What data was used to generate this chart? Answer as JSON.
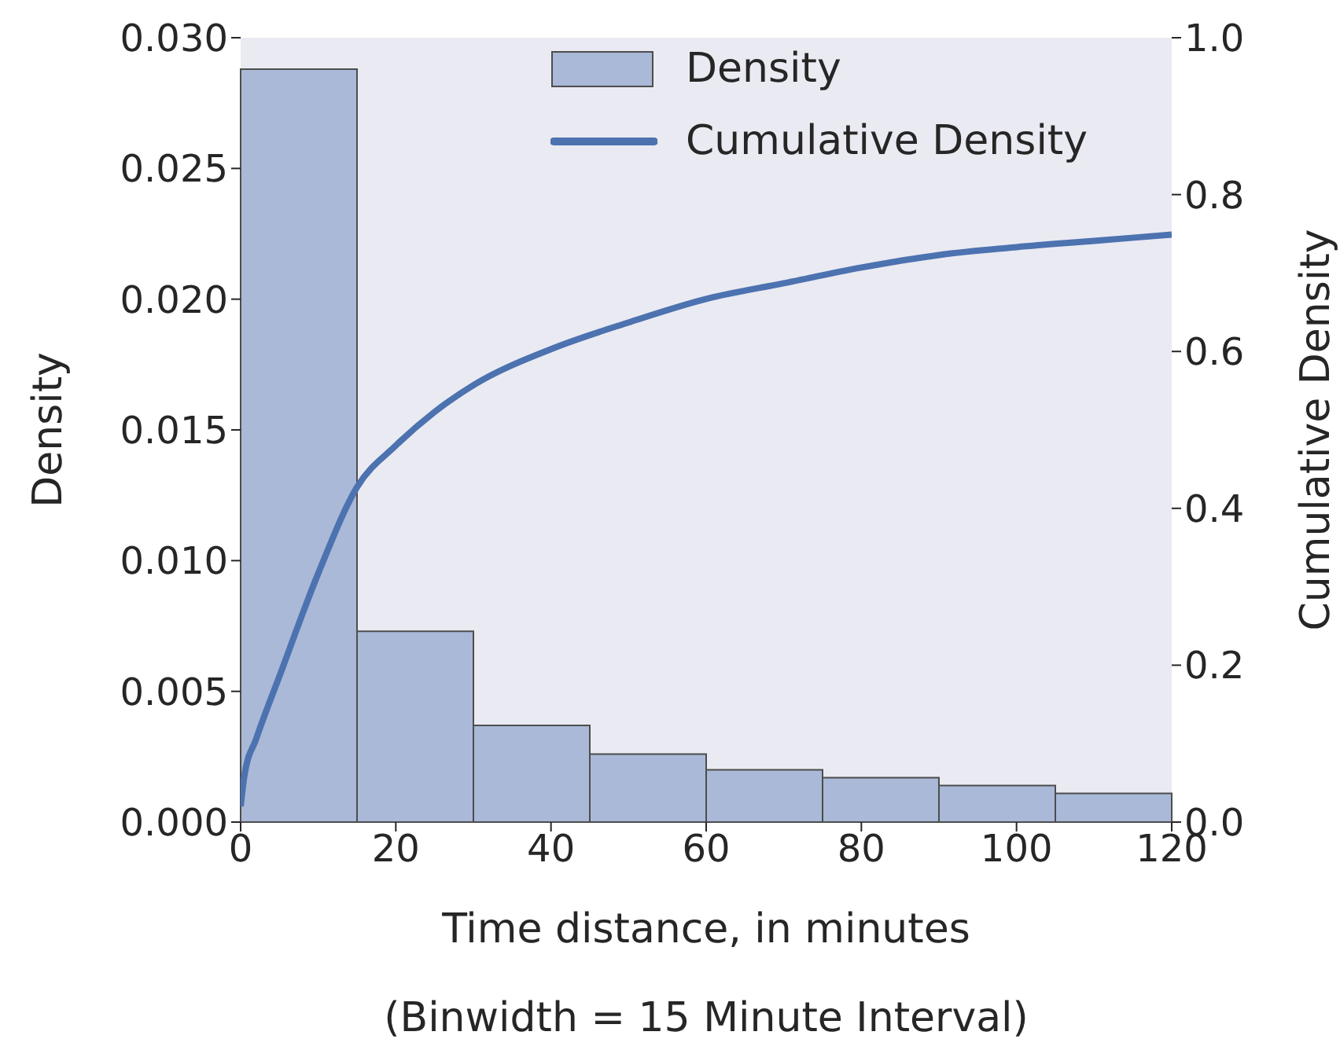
{
  "chart_data": {
    "type": "histogram",
    "xlabel": "Time distance, in minutes",
    "ylabel": "Density",
    "y2label": "Cumulative Density",
    "annotations": [
      "(Binwidth = 15 Minute Interval)"
    ],
    "series": [
      {
        "name": "Density",
        "type": "histogram",
        "color": "#a9b9d7",
        "bins": [
          0,
          15,
          30,
          45,
          60,
          75,
          90,
          105,
          120
        ],
        "values": [
          0.0288,
          0.0073,
          0.0037,
          0.0026,
          0.002,
          0.0017,
          0.0014,
          0.0011
        ]
      },
      {
        "name": "Cumulative Density",
        "type": "line",
        "axis": "y2",
        "color": "#4c72b0",
        "x": [
          0,
          0.5,
          2,
          5,
          10,
          15,
          20,
          25,
          30,
          40,
          50,
          60,
          70,
          80,
          90,
          100,
          110,
          120
        ],
        "values": [
          0.02,
          0.06,
          0.106,
          0.186,
          0.317,
          0.427,
          0.48,
          0.523,
          0.557,
          0.603,
          0.637,
          0.667,
          0.687,
          0.707,
          0.723,
          0.733,
          0.741,
          0.749
        ]
      }
    ],
    "xlim": [
      0,
      120
    ],
    "xticks": [
      0,
      20,
      40,
      60,
      80,
      100,
      120
    ],
    "ylim": [
      0,
      0.03
    ],
    "yticks": [
      {
        "value": 0,
        "label": "0.000"
      },
      {
        "value": 0.005,
        "label": "0.005"
      },
      {
        "value": 0.01,
        "label": "0.010"
      },
      {
        "value": 0.015,
        "label": "0.015"
      },
      {
        "value": 0.02,
        "label": "0.020"
      },
      {
        "value": 0.025,
        "label": "0.025"
      },
      {
        "value": 0.03,
        "label": "0.030"
      }
    ],
    "y2lim": [
      0,
      1
    ],
    "y2ticks": [
      {
        "value": 0,
        "label": "0.0"
      },
      {
        "value": 0.2,
        "label": "0.2"
      },
      {
        "value": 0.4,
        "label": "0.4"
      },
      {
        "value": 0.6,
        "label": "0.6"
      },
      {
        "value": 0.8,
        "label": "0.8"
      },
      {
        "value": 1,
        "label": "1.0"
      }
    ],
    "grid": false,
    "legend": "top right"
  }
}
